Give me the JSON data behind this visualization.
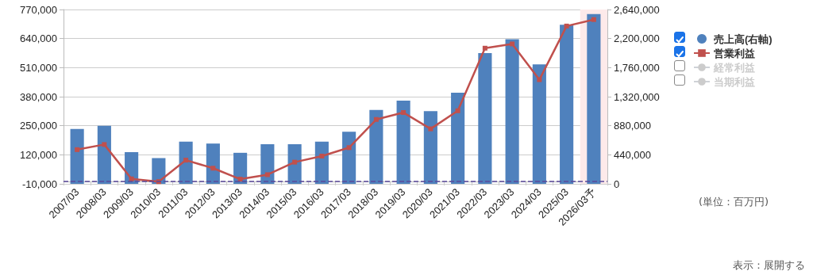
{
  "chart_data": {
    "type": "bar",
    "categories": [
      "2007/03",
      "2008/03",
      "2009/03",
      "2010/03",
      "2011/03",
      "2012/03",
      "2013/03",
      "2014/03",
      "2015/03",
      "2016/03",
      "2017/03",
      "2018/03",
      "2019/03",
      "2020/03",
      "2021/03",
      "2022/03",
      "2023/03",
      "2024/03",
      "2025/03",
      "2026/03予"
    ],
    "series": [
      {
        "name": "売上高(右軸)",
        "axis": "y2",
        "color": "#4f81bd",
        "values": [
          830000,
          880000,
          480000,
          390000,
          640000,
          610000,
          470000,
          600000,
          600000,
          640000,
          790000,
          1120000,
          1260000,
          1100000,
          1380000,
          1980000,
          2190000,
          1810000,
          2410000,
          2570000
        ]
      },
      {
        "name": "営業利益",
        "type": "line",
        "marker": "square",
        "color": "#c0504d",
        "values": [
          143000,
          166000,
          12000,
          0,
          96000,
          60000,
          11000,
          31000,
          87000,
          114000,
          152000,
          278000,
          309000,
          236000,
          317000,
          597000,
          616000,
          456000,
          696000,
          725000
        ]
      },
      {
        "name": "経常利益",
        "type": "line",
        "color": "#cccccc",
        "values": [
          null,
          null,
          null,
          null,
          null,
          null,
          null,
          null,
          null,
          null,
          null,
          null,
          null,
          null,
          null,
          null,
          null,
          null,
          null,
          null
        ]
      },
      {
        "name": "当期利益",
        "type": "line",
        "color": "#cccccc",
        "values": [
          null,
          null,
          null,
          null,
          null,
          null,
          null,
          null,
          null,
          null,
          null,
          null,
          null,
          null,
          null,
          null,
          null,
          null,
          null,
          null
        ]
      }
    ],
    "ylim": [
      -10000,
      770000
    ],
    "yticks": [
      {
        "value": -10000,
        "label": "-10,000"
      },
      {
        "value": 120000,
        "label": "120,000"
      },
      {
        "value": 250000,
        "label": "250,000"
      },
      {
        "value": 380000,
        "label": "380,000"
      },
      {
        "value": 510000,
        "label": "510,000"
      },
      {
        "value": 640000,
        "label": "640,000"
      },
      {
        "value": 770000,
        "label": "770,000"
      }
    ],
    "y2lim": [
      0,
      2640000
    ],
    "y2ticks": [
      0,
      {
        "value": 440000,
        "label": "440,000"
      },
      {
        "value": 880000,
        "label": "880,000"
      },
      {
        "value": 1320000,
        "label": "1,320,000"
      },
      {
        "value": 1760000,
        "label": "1,760,000"
      },
      {
        "value": 2200000,
        "label": "2,200,000"
      },
      {
        "value": 2640000,
        "label": "2,640,000"
      }
    ],
    "ref_lines": [
      {
        "axis": "y",
        "value": 0,
        "color": "#5b4a9a",
        "line_style": "dashed"
      }
    ],
    "bands": [
      {
        "axis": "x",
        "from": "2026/03予",
        "to": "2026/03予",
        "color": "#fdeaea"
      }
    ],
    "grid": "y",
    "legend": "right",
    "annotations": [
      "(単位：百万円)",
      "表示：展開する"
    ]
  }
}
